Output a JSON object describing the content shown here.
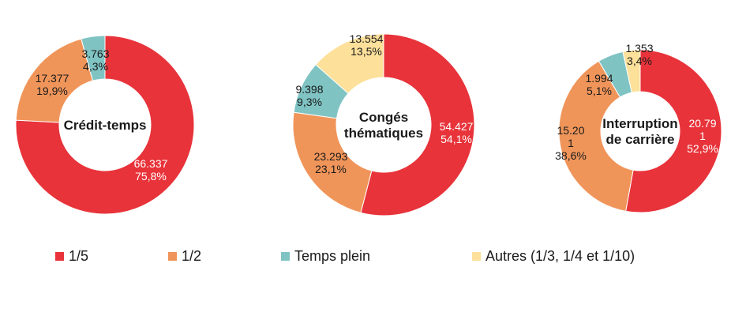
{
  "colors": {
    "1/5": "#e8333a",
    "1/2": "#f0955a",
    "Temps plein": "#7fc3c3",
    "Autres": "#fde09a"
  },
  "legend": [
    {
      "key": "1/5",
      "label": "1/5"
    },
    {
      "key": "1/2",
      "label": "1/2"
    },
    {
      "key": "Temps plein",
      "label": "Temps plein"
    },
    {
      "key": "Autres",
      "label": "Autres (1/3, 1/4 et 1/10)"
    }
  ],
  "chart_data": [
    {
      "type": "pie",
      "title": "Crédit-temps",
      "slices": [
        {
          "key": "1/5",
          "value": 66337,
          "value_label": "66.337",
          "percent": 75.8,
          "percent_label": "75,8%"
        },
        {
          "key": "1/2",
          "value": 17377,
          "value_label": "17.377",
          "percent": 19.9,
          "percent_label": "19,9%"
        },
        {
          "key": "Temps plein",
          "value": 3763,
          "value_label": "3.763",
          "percent": 4.3,
          "percent_label": "4,3%"
        }
      ]
    },
    {
      "type": "pie",
      "title": "Congés thématiques",
      "slices": [
        {
          "key": "1/5",
          "value": 54427,
          "value_label": "54.427",
          "percent": 54.1,
          "percent_label": "54,1%"
        },
        {
          "key": "1/2",
          "value": 23293,
          "value_label": "23.293",
          "percent": 23.1,
          "percent_label": "23,1%"
        },
        {
          "key": "Temps plein",
          "value": 9398,
          "value_label": "9.398",
          "percent": 9.3,
          "percent_label": "9,3%"
        },
        {
          "key": "Autres",
          "value": 13554,
          "value_label": "13.554",
          "percent": 13.5,
          "percent_label": "13,5%"
        }
      ]
    },
    {
      "type": "pie",
      "title": "Interruption de carrière",
      "slices": [
        {
          "key": "1/5",
          "value": 20791,
          "value_label": "20.791",
          "percent": 52.9,
          "percent_label": "52,9%"
        },
        {
          "key": "1/2",
          "value": 15201,
          "value_label": "15.201",
          "percent": 38.6,
          "percent_label": "38,6%"
        },
        {
          "key": "Temps plein",
          "value": 1994,
          "value_label": "1.994",
          "percent": 5.1,
          "percent_label": "5,1%"
        },
        {
          "key": "Autres",
          "value": 1353,
          "value_label": "1.353",
          "percent": 3.4,
          "percent_label": "3,4%"
        }
      ]
    }
  ]
}
